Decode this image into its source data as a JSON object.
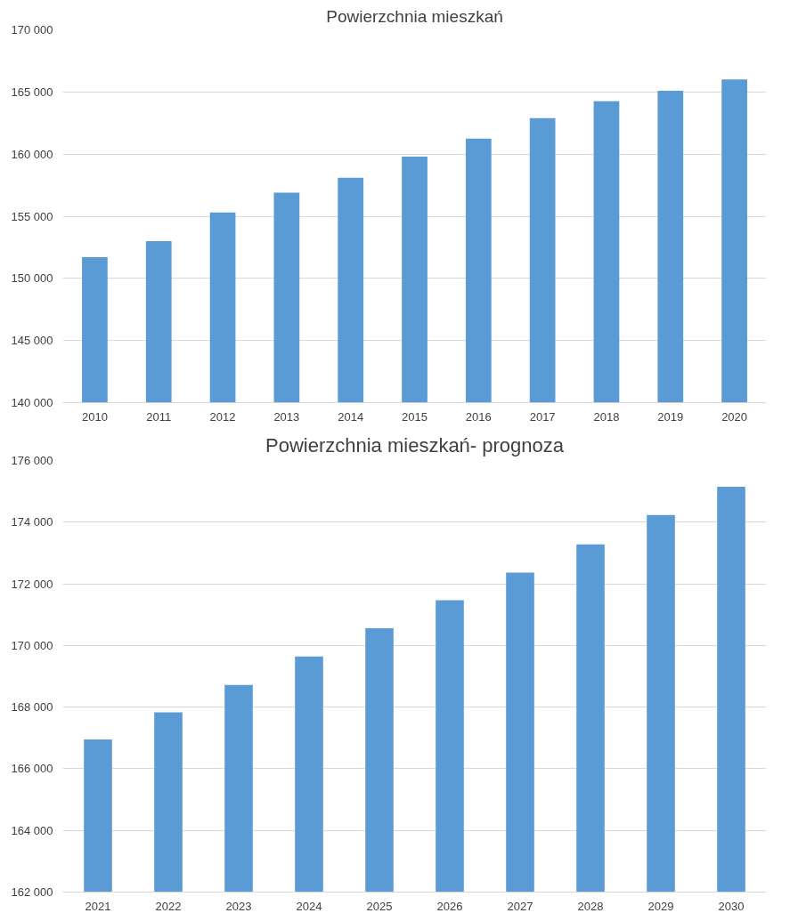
{
  "chart_data": [
    {
      "type": "bar",
      "title": "Powierzchnia mieszkań",
      "categories": [
        "2010",
        "2011",
        "2012",
        "2013",
        "2014",
        "2015",
        "2016",
        "2017",
        "2018",
        "2019",
        "2020"
      ],
      "values": [
        151700,
        153000,
        155300,
        156900,
        158100,
        159800,
        161250,
        162900,
        164250,
        165100,
        166000
      ],
      "color": "#5b9bd5",
      "ylim": [
        140000,
        170000
      ],
      "yticks": [
        {
          "value": 140000,
          "label": "140 000"
        },
        {
          "value": 145000,
          "label": "145 000"
        },
        {
          "value": 150000,
          "label": "150 000"
        },
        {
          "value": 155000,
          "label": "155 000"
        },
        {
          "value": 160000,
          "label": "160 000"
        },
        {
          "value": 165000,
          "label": "165 000"
        },
        {
          "value": 170000,
          "label": "170 000"
        }
      ],
      "grid": "y"
    },
    {
      "type": "bar",
      "title": "Powierzchnia mieszkań- prognoza",
      "categories": [
        "2021",
        "2022",
        "2023",
        "2024",
        "2025",
        "2026",
        "2027",
        "2028",
        "2029",
        "2030"
      ],
      "values": [
        166950,
        167830,
        168720,
        169640,
        170560,
        171470,
        172360,
        173280,
        174230,
        175150
      ],
      "color": "#5b9bd5",
      "ylim": [
        162000,
        176000
      ],
      "yticks": [
        {
          "value": 162000,
          "label": "162 000"
        },
        {
          "value": 164000,
          "label": "164 000"
        },
        {
          "value": 166000,
          "label": "166 000"
        },
        {
          "value": 168000,
          "label": "168 000"
        },
        {
          "value": 170000,
          "label": "170 000"
        },
        {
          "value": 172000,
          "label": "172 000"
        },
        {
          "value": 174000,
          "label": "174 000"
        },
        {
          "value": 176000,
          "label": "176 000"
        }
      ],
      "grid": "y"
    }
  ]
}
